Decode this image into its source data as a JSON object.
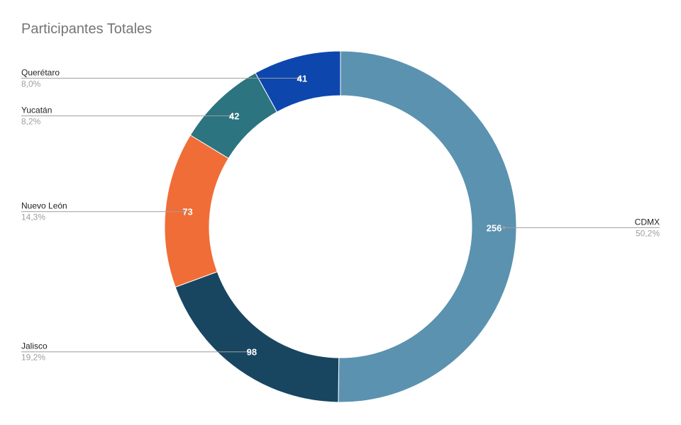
{
  "chart_data": {
    "type": "pie",
    "donut": true,
    "title": "Participantes Totales",
    "start_angle_deg": 0,
    "direction": "clockwise",
    "slices": [
      {
        "label": "CDMX",
        "value": 256,
        "value_label": "256",
        "percent_label": "50,2%",
        "color": "#5b92b0"
      },
      {
        "label": "Jalisco",
        "value": 98,
        "value_label": "98",
        "percent_label": "19,2%",
        "color": "#184661"
      },
      {
        "label": "Nuevo León",
        "value": 73,
        "value_label": "73",
        "percent_label": "14,3%",
        "color": "#f06d37"
      },
      {
        "label": "Yucatán",
        "value": 42,
        "value_label": "42",
        "percent_label": "8,2%",
        "color": "#2b7480"
      },
      {
        "label": "Querétaro",
        "value": 41,
        "value_label": "41",
        "percent_label": "8,0%",
        "color": "#0d47ad"
      }
    ],
    "legend": "none"
  }
}
